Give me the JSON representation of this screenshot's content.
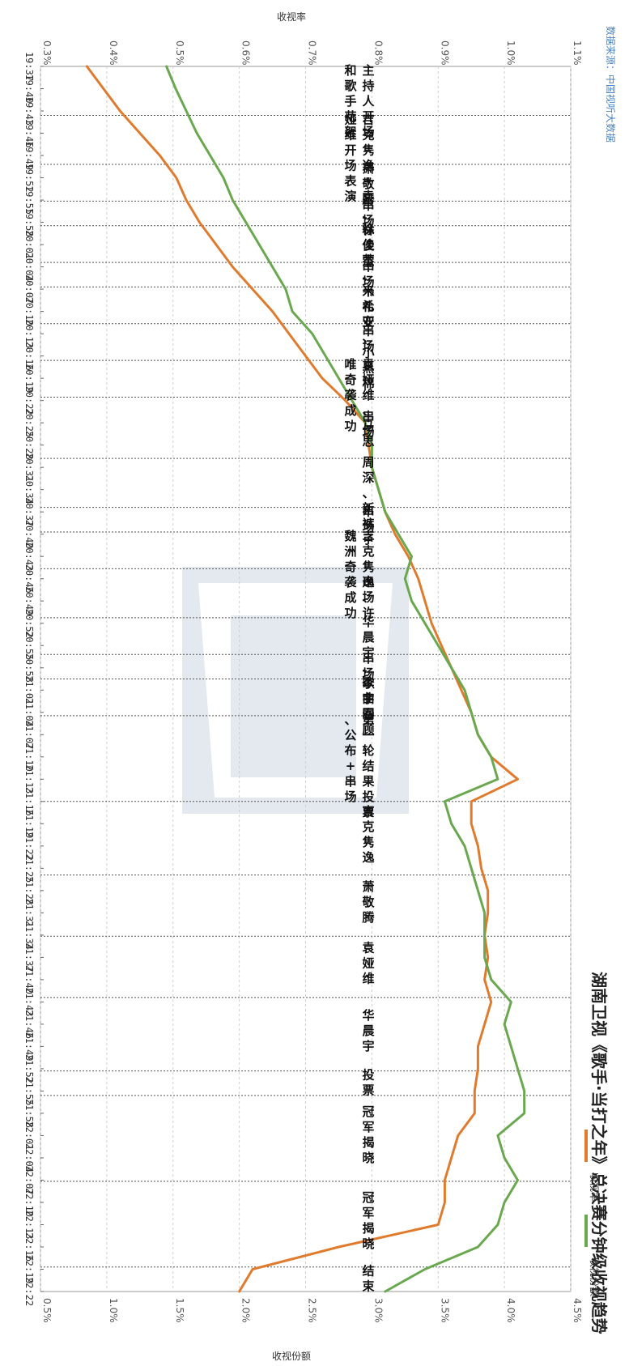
{
  "chart_data": {
    "type": "line",
    "title": "湖南卫视《歌手·当打之年》总决赛分钟级收视趋势",
    "source": "数据来源：中国视听大数据",
    "top_axis": {
      "label": "收视率",
      "ticks": [
        "0.3%",
        "0.4%",
        "0.5%",
        "0.6%",
        "0.7%",
        "0.8%",
        "0.9%",
        "1.0%",
        "1.1%"
      ],
      "range": [
        0.3,
        1.1
      ]
    },
    "bottom_axis": {
      "label": "收视份额",
      "ticks": [
        "0.5%",
        "1.0%",
        "1.5%",
        "2.0%",
        "2.5%",
        "3.0%",
        "3.5%",
        "4.0%",
        "4.5%"
      ],
      "range": [
        0.5,
        4.5
      ]
    },
    "times": [
      "19:37",
      "19:40",
      "19:43",
      "19:46",
      "19:49",
      "19:52",
      "19:55",
      "19:58",
      "20:01",
      "20:04",
      "20:07",
      "20:10",
      "20:13",
      "20:16",
      "20:19",
      "20:22",
      "20:25",
      "20:28",
      "20:31",
      "20:34",
      "20:37",
      "20:40",
      "20:43",
      "20:46",
      "20:49",
      "20:52",
      "20:55",
      "20:58",
      "21:01",
      "21:04",
      "21:07",
      "21:10",
      "21:13",
      "21:16",
      "21:19",
      "21:22",
      "21:25",
      "21:28",
      "21:31",
      "21:34",
      "21:37",
      "21:40",
      "21:43",
      "21:46",
      "21:49",
      "21:52",
      "21:55",
      "21:58",
      "22:01",
      "22:04",
      "22:07",
      "22:10",
      "22:13",
      "22:16",
      "22:19",
      "22:22"
    ],
    "series": [
      {
        "name": "收视率",
        "color": "#e07b2e",
        "axis": "top",
        "values": [
          0.37,
          0.395,
          0.42,
          0.45,
          0.48,
          0.505,
          0.52,
          0.54,
          0.565,
          0.59,
          0.62,
          0.65,
          0.675,
          0.7,
          0.725,
          0.76,
          0.79,
          0.795,
          0.8,
          0.81,
          0.82,
          0.835,
          0.855,
          0.87,
          0.88,
          0.89,
          0.905,
          0.92,
          0.935,
          0.95,
          0.96,
          0.98,
          1.02,
          0.95,
          0.95,
          0.96,
          0.965,
          0.975,
          0.975,
          0.97,
          0.975,
          0.97,
          0.98,
          0.97,
          0.96,
          0.96,
          0.955,
          0.955,
          0.93,
          0.92,
          0.91,
          0.91,
          0.9,
          0.75,
          0.62,
          0.6
        ]
      },
      {
        "name": "收视份额",
        "color": "#6aa84f",
        "axis": "bottom",
        "values": [
          1.45,
          1.52,
          1.6,
          1.68,
          1.78,
          1.88,
          1.95,
          2.05,
          2.15,
          2.25,
          2.35,
          2.4,
          2.55,
          2.65,
          2.75,
          2.85,
          2.95,
          3.0,
          3.0,
          3.05,
          3.1,
          3.2,
          3.3,
          3.25,
          3.3,
          3.4,
          3.5,
          3.6,
          3.7,
          3.75,
          3.8,
          3.9,
          3.95,
          3.55,
          3.6,
          3.7,
          3.75,
          3.8,
          3.85,
          3.85,
          3.85,
          3.9,
          4.05,
          4.0,
          4.05,
          4.1,
          4.15,
          4.15,
          3.95,
          4.0,
          4.1,
          4.0,
          3.95,
          3.8,
          3.4,
          3.1
        ]
      }
    ],
    "segments": [
      {
        "start": 0,
        "end": 4,
        "label": "主持人开场和歌手花絮"
      },
      {
        "start": 4,
        "end": 8,
        "label": "吉克隽逸+袁娅维开场表演"
      },
      {
        "start": 8,
        "end": 11,
        "label": "萧敬腾、林俊杰"
      },
      {
        "start": 11,
        "end": 13,
        "label": "串场"
      },
      {
        "start": 13,
        "end": 16,
        "label": "徐佳莹、韦礼安"
      },
      {
        "start": 16,
        "end": 18,
        "label": "串场"
      },
      {
        "start": 18,
        "end": 21,
        "label": "米希亚、小黑棉"
      },
      {
        "start": 21,
        "end": 24,
        "label": "串场"
      },
      {
        "start": 24,
        "end": 27,
        "label": "袁娅维、马思唯奇袭成功"
      },
      {
        "start": 27,
        "end": 32,
        "label": "串场"
      },
      {
        "start": 32,
        "end": 36,
        "label": "周深、新裤子"
      },
      {
        "start": 36,
        "end": 38,
        "label": "串场"
      },
      {
        "start": 38,
        "end": 41,
        "label": "吉克隽逸、许魏洲奇袭成功"
      },
      {
        "start": 41,
        "end": 45,
        "label": "串场"
      },
      {
        "start": 45,
        "end": 48,
        "label": "华晨宇、李宇春"
      },
      {
        "start": 48,
        "end": 50,
        "label": "串场"
      },
      {
        "start": 50,
        "end": 53,
        "label": "歌曲回顾"
      },
      {
        "start": 53,
        "end": 60,
        "label": "第一轮结果投票、公布+串场"
      },
      {
        "start": 60,
        "end": 66,
        "label": "吉克隽逸"
      },
      {
        "start": 66,
        "end": 71,
        "label": "萧敬腾"
      },
      {
        "start": 71,
        "end": 76,
        "label": "袁娅维"
      },
      {
        "start": 76,
        "end": 82,
        "label": "华晨宇"
      },
      {
        "start": 82,
        "end": 84,
        "label": "投票"
      },
      {
        "start": 84,
        "end": 91,
        "label": "冠军揭晓"
      },
      {
        "start": 91,
        "end": 98,
        "label": "冠军揭晓"
      },
      {
        "start": 98,
        "end": 100,
        "label": "结束"
      }
    ],
    "legend": [
      "收视率",
      "收视份额"
    ],
    "legend_position": "bottom-right",
    "grid": true
  }
}
